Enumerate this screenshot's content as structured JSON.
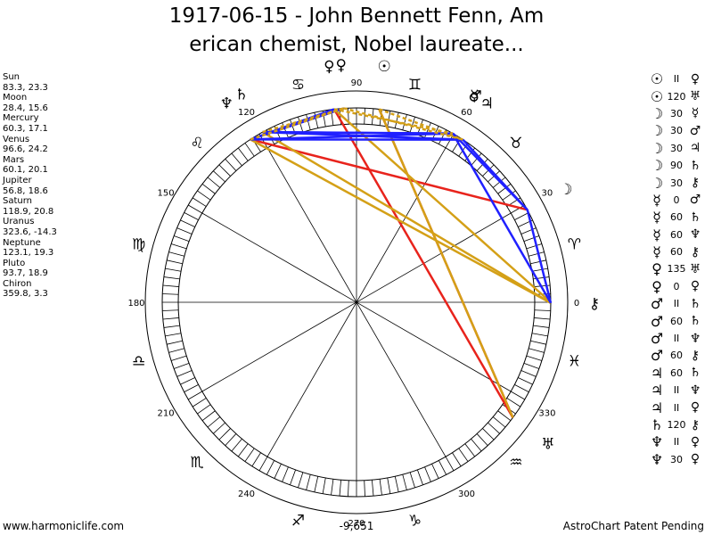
{
  "title_line1": "1917-06-15 - John Bennett Fenn, Am",
  "title_line2": "erican chemist, Nobel laureate...",
  "positions": [
    {
      "name": "Sun",
      "coords": "83.3, 23.3"
    },
    {
      "name": "Moon",
      "coords": "28.4, 15.6"
    },
    {
      "name": "Mercury",
      "coords": "60.3, 17.1"
    },
    {
      "name": "Venus",
      "coords": "96.6, 24.2"
    },
    {
      "name": "Mars",
      "coords": "60.1, 20.1"
    },
    {
      "name": "Jupiter",
      "coords": "56.8, 18.6"
    },
    {
      "name": "Saturn",
      "coords": "118.9, 20.8"
    },
    {
      "name": "Uranus",
      "coords": "323.6, -14.3"
    },
    {
      "name": "Neptune",
      "coords": "123.1, 19.3"
    },
    {
      "name": "Pluto",
      "coords": "93.7, 18.9"
    },
    {
      "name": "Chiron",
      "coords": "359.8, 3.3"
    }
  ],
  "aspects": [
    {
      "p1": "sun-glyph",
      "p1_char": "☉",
      "angle": "II",
      "p2": "venus-glyph",
      "p2_char": "♀"
    },
    {
      "p1": "sun-glyph",
      "p1_char": "☉",
      "angle": "120",
      "p2": "neptune-glyph",
      "p2_char": "♅"
    },
    {
      "p1": "moon-glyph",
      "p1_char": "☽",
      "angle": "30",
      "p2": "mercury-glyph",
      "p2_char": "☿"
    },
    {
      "p1": "moon-glyph",
      "p1_char": "☽",
      "angle": "30",
      "p2": "mars-glyph",
      "p2_char": "♂"
    },
    {
      "p1": "moon-glyph",
      "p1_char": "☽",
      "angle": "30",
      "p2": "jupiter-glyph",
      "p2_char": "♃"
    },
    {
      "p1": "moon-glyph",
      "p1_char": "☽",
      "angle": "90",
      "p2": "saturn-glyph",
      "p2_char": "♄"
    },
    {
      "p1": "moon-glyph",
      "p1_char": "☽",
      "angle": "30",
      "p2": "chiron-glyph",
      "p2_char": "⚷"
    },
    {
      "p1": "mercury-glyph",
      "p1_char": "☿",
      "angle": "0",
      "p2": "mars-glyph",
      "p2_char": "♂"
    },
    {
      "p1": "mercury-glyph",
      "p1_char": "☿",
      "angle": "60",
      "p2": "saturn-glyph",
      "p2_char": "♄"
    },
    {
      "p1": "mercury-glyph",
      "p1_char": "☿",
      "angle": "60",
      "p2": "neptune-glyph",
      "p2_char": "♆"
    },
    {
      "p1": "mercury-glyph",
      "p1_char": "☿",
      "angle": "60",
      "p2": "chiron-glyph",
      "p2_char": "⚷"
    },
    {
      "p1": "venus-glyph",
      "p1_char": "♀",
      "angle": "135",
      "p2": "uranus-glyph",
      "p2_char": "♅"
    },
    {
      "p1": "venus-glyph",
      "p1_char": "♀",
      "angle": "0",
      "p2": "pluto-glyph",
      "p2_char": "♀"
    },
    {
      "p1": "mars-glyph",
      "p1_char": "♂",
      "angle": "II",
      "p2": "saturn-glyph",
      "p2_char": "♄"
    },
    {
      "p1": "mars-glyph",
      "p1_char": "♂",
      "angle": "60",
      "p2": "saturn-glyph",
      "p2_char": "♄"
    },
    {
      "p1": "mars-glyph",
      "p1_char": "♂",
      "angle": "II",
      "p2": "neptune-glyph",
      "p2_char": "♆"
    },
    {
      "p1": "mars-glyph",
      "p1_char": "♂",
      "angle": "60",
      "p2": "chiron-glyph",
      "p2_char": "⚷"
    },
    {
      "p1": "jupiter-glyph",
      "p1_char": "♃",
      "angle": "60",
      "p2": "saturn-glyph",
      "p2_char": "♄"
    },
    {
      "p1": "jupiter-glyph",
      "p1_char": "♃",
      "angle": "II",
      "p2": "neptune-glyph",
      "p2_char": "♆"
    },
    {
      "p1": "jupiter-glyph",
      "p1_char": "♃",
      "angle": "II",
      "p2": "pluto-glyph",
      "p2_char": "♀"
    },
    {
      "p1": "saturn-glyph",
      "p1_char": "♄",
      "angle": "120",
      "p2": "chiron-glyph",
      "p2_char": "⚷"
    },
    {
      "p1": "neptune-glyph",
      "p1_char": "♆",
      "angle": "II",
      "p2": "pluto-glyph",
      "p2_char": "♀"
    },
    {
      "p1": "neptune-glyph",
      "p1_char": "♆",
      "angle": "30",
      "p2": "pluto-glyph",
      "p2_char": "♀"
    }
  ],
  "wheel": {
    "degree_labels": [
      {
        "deg": 0,
        "text": "0"
      },
      {
        "deg": 30,
        "text": "30"
      },
      {
        "deg": 60,
        "text": "60"
      },
      {
        "deg": 90,
        "text": "90"
      },
      {
        "deg": 120,
        "text": "120"
      },
      {
        "deg": 150,
        "text": "150"
      },
      {
        "deg": 180,
        "text": "180"
      },
      {
        "deg": 210,
        "text": "210"
      },
      {
        "deg": 240,
        "text": "240"
      },
      {
        "deg": 270,
        "text": "270"
      },
      {
        "deg": 300,
        "text": "300"
      },
      {
        "deg": 330,
        "text": "330"
      }
    ],
    "signs": [
      {
        "name": "aries",
        "char": "♈",
        "deg": 15
      },
      {
        "name": "taurus",
        "char": "♉",
        "deg": 45
      },
      {
        "name": "gemini",
        "char": "♊",
        "deg": 75
      },
      {
        "name": "cancer",
        "char": "♋",
        "deg": 105
      },
      {
        "name": "leo",
        "char": "♌",
        "deg": 135
      },
      {
        "name": "virgo",
        "char": "♍",
        "deg": 165
      },
      {
        "name": "libra",
        "char": "♎",
        "deg": 195
      },
      {
        "name": "scorpio",
        "char": "♏",
        "deg": 225
      },
      {
        "name": "sagittarius",
        "char": "♐",
        "deg": 255
      },
      {
        "name": "capricorn",
        "char": "♑",
        "deg": 285
      },
      {
        "name": "aquarius",
        "char": "♒",
        "deg": 315
      },
      {
        "name": "pisces",
        "char": "♓",
        "deg": 345
      }
    ],
    "planets": [
      {
        "name": "sun",
        "char": "☉",
        "deg": 83.3
      },
      {
        "name": "moon",
        "char": "☽",
        "deg": 28.4
      },
      {
        "name": "mercury",
        "char": "☿",
        "deg": 60.3
      },
      {
        "name": "venus",
        "char": "♀",
        "deg": 96.6
      },
      {
        "name": "mars",
        "char": "♂",
        "deg": 60.1
      },
      {
        "name": "jupiter",
        "char": "♃",
        "deg": 56.8
      },
      {
        "name": "saturn",
        "char": "♄",
        "deg": 118.9
      },
      {
        "name": "uranus",
        "char": "♅",
        "deg": 323.6
      },
      {
        "name": "neptune",
        "char": "♆",
        "deg": 123.1
      },
      {
        "name": "pluto",
        "char": "♀",
        "deg": 93.7
      },
      {
        "name": "chiron",
        "char": "⚷",
        "deg": 359.8
      }
    ],
    "aspect_lines": [
      {
        "from": 83.3,
        "to": 323.6,
        "color": "#e8231c",
        "dashed": false
      },
      {
        "from": 28.4,
        "to": 123.1,
        "color": "#e8231c",
        "dashed": false
      },
      {
        "from": 96.6,
        "to": 323.6,
        "color": "#e8231c",
        "dashed": false
      },
      {
        "from": 96.6,
        "to": 360.0,
        "color": "#d4a017",
        "dashed": false
      },
      {
        "from": 83.3,
        "to": 323.6,
        "color": "#d4a017",
        "dashed": false
      },
      {
        "from": 118.9,
        "to": 359.8,
        "color": "#d4a017",
        "dashed": false
      },
      {
        "from": 123.1,
        "to": 359.8,
        "color": "#d4a017",
        "dashed": false
      },
      {
        "from": 60.3,
        "to": 118.9,
        "color": "#2020ff",
        "dashed": false
      },
      {
        "from": 60.1,
        "to": 118.9,
        "color": "#2020ff",
        "dashed": false
      },
      {
        "from": 60.3,
        "to": 123.1,
        "color": "#2020ff",
        "dashed": false
      },
      {
        "from": 56.8,
        "to": 118.9,
        "color": "#2020ff",
        "dashed": false
      },
      {
        "from": 56.8,
        "to": 123.1,
        "color": "#2020ff",
        "dashed": false
      },
      {
        "from": 96.6,
        "to": 123.1,
        "color": "#2020ff",
        "dashed": false
      },
      {
        "from": 93.7,
        "to": 123.1,
        "color": "#2020ff",
        "dashed": false
      },
      {
        "from": 60.1,
        "to": 28.4,
        "color": "#2020ff",
        "dashed": false
      },
      {
        "from": 56.8,
        "to": 28.4,
        "color": "#2020ff",
        "dashed": false
      },
      {
        "from": 28.4,
        "to": 359.8,
        "color": "#2020ff",
        "dashed": false
      },
      {
        "from": 60.3,
        "to": 359.8,
        "color": "#2020ff",
        "dashed": false
      },
      {
        "from": 83.3,
        "to": 56.8,
        "color": "#d4a017",
        "dashed": true
      },
      {
        "from": 96.6,
        "to": 60.3,
        "color": "#d4a017",
        "dashed": true
      },
      {
        "from": 93.7,
        "to": 56.8,
        "color": "#d4a017",
        "dashed": true
      },
      {
        "from": 118.9,
        "to": 93.7,
        "color": "#d4a017",
        "dashed": true
      },
      {
        "from": 123.1,
        "to": 93.7,
        "color": "#d4a017",
        "dashed": true
      }
    ]
  },
  "bottom_value": "-9,651",
  "footer_left": "www.harmoniclife.com",
  "footer_right": "AstroChart Patent Pending"
}
